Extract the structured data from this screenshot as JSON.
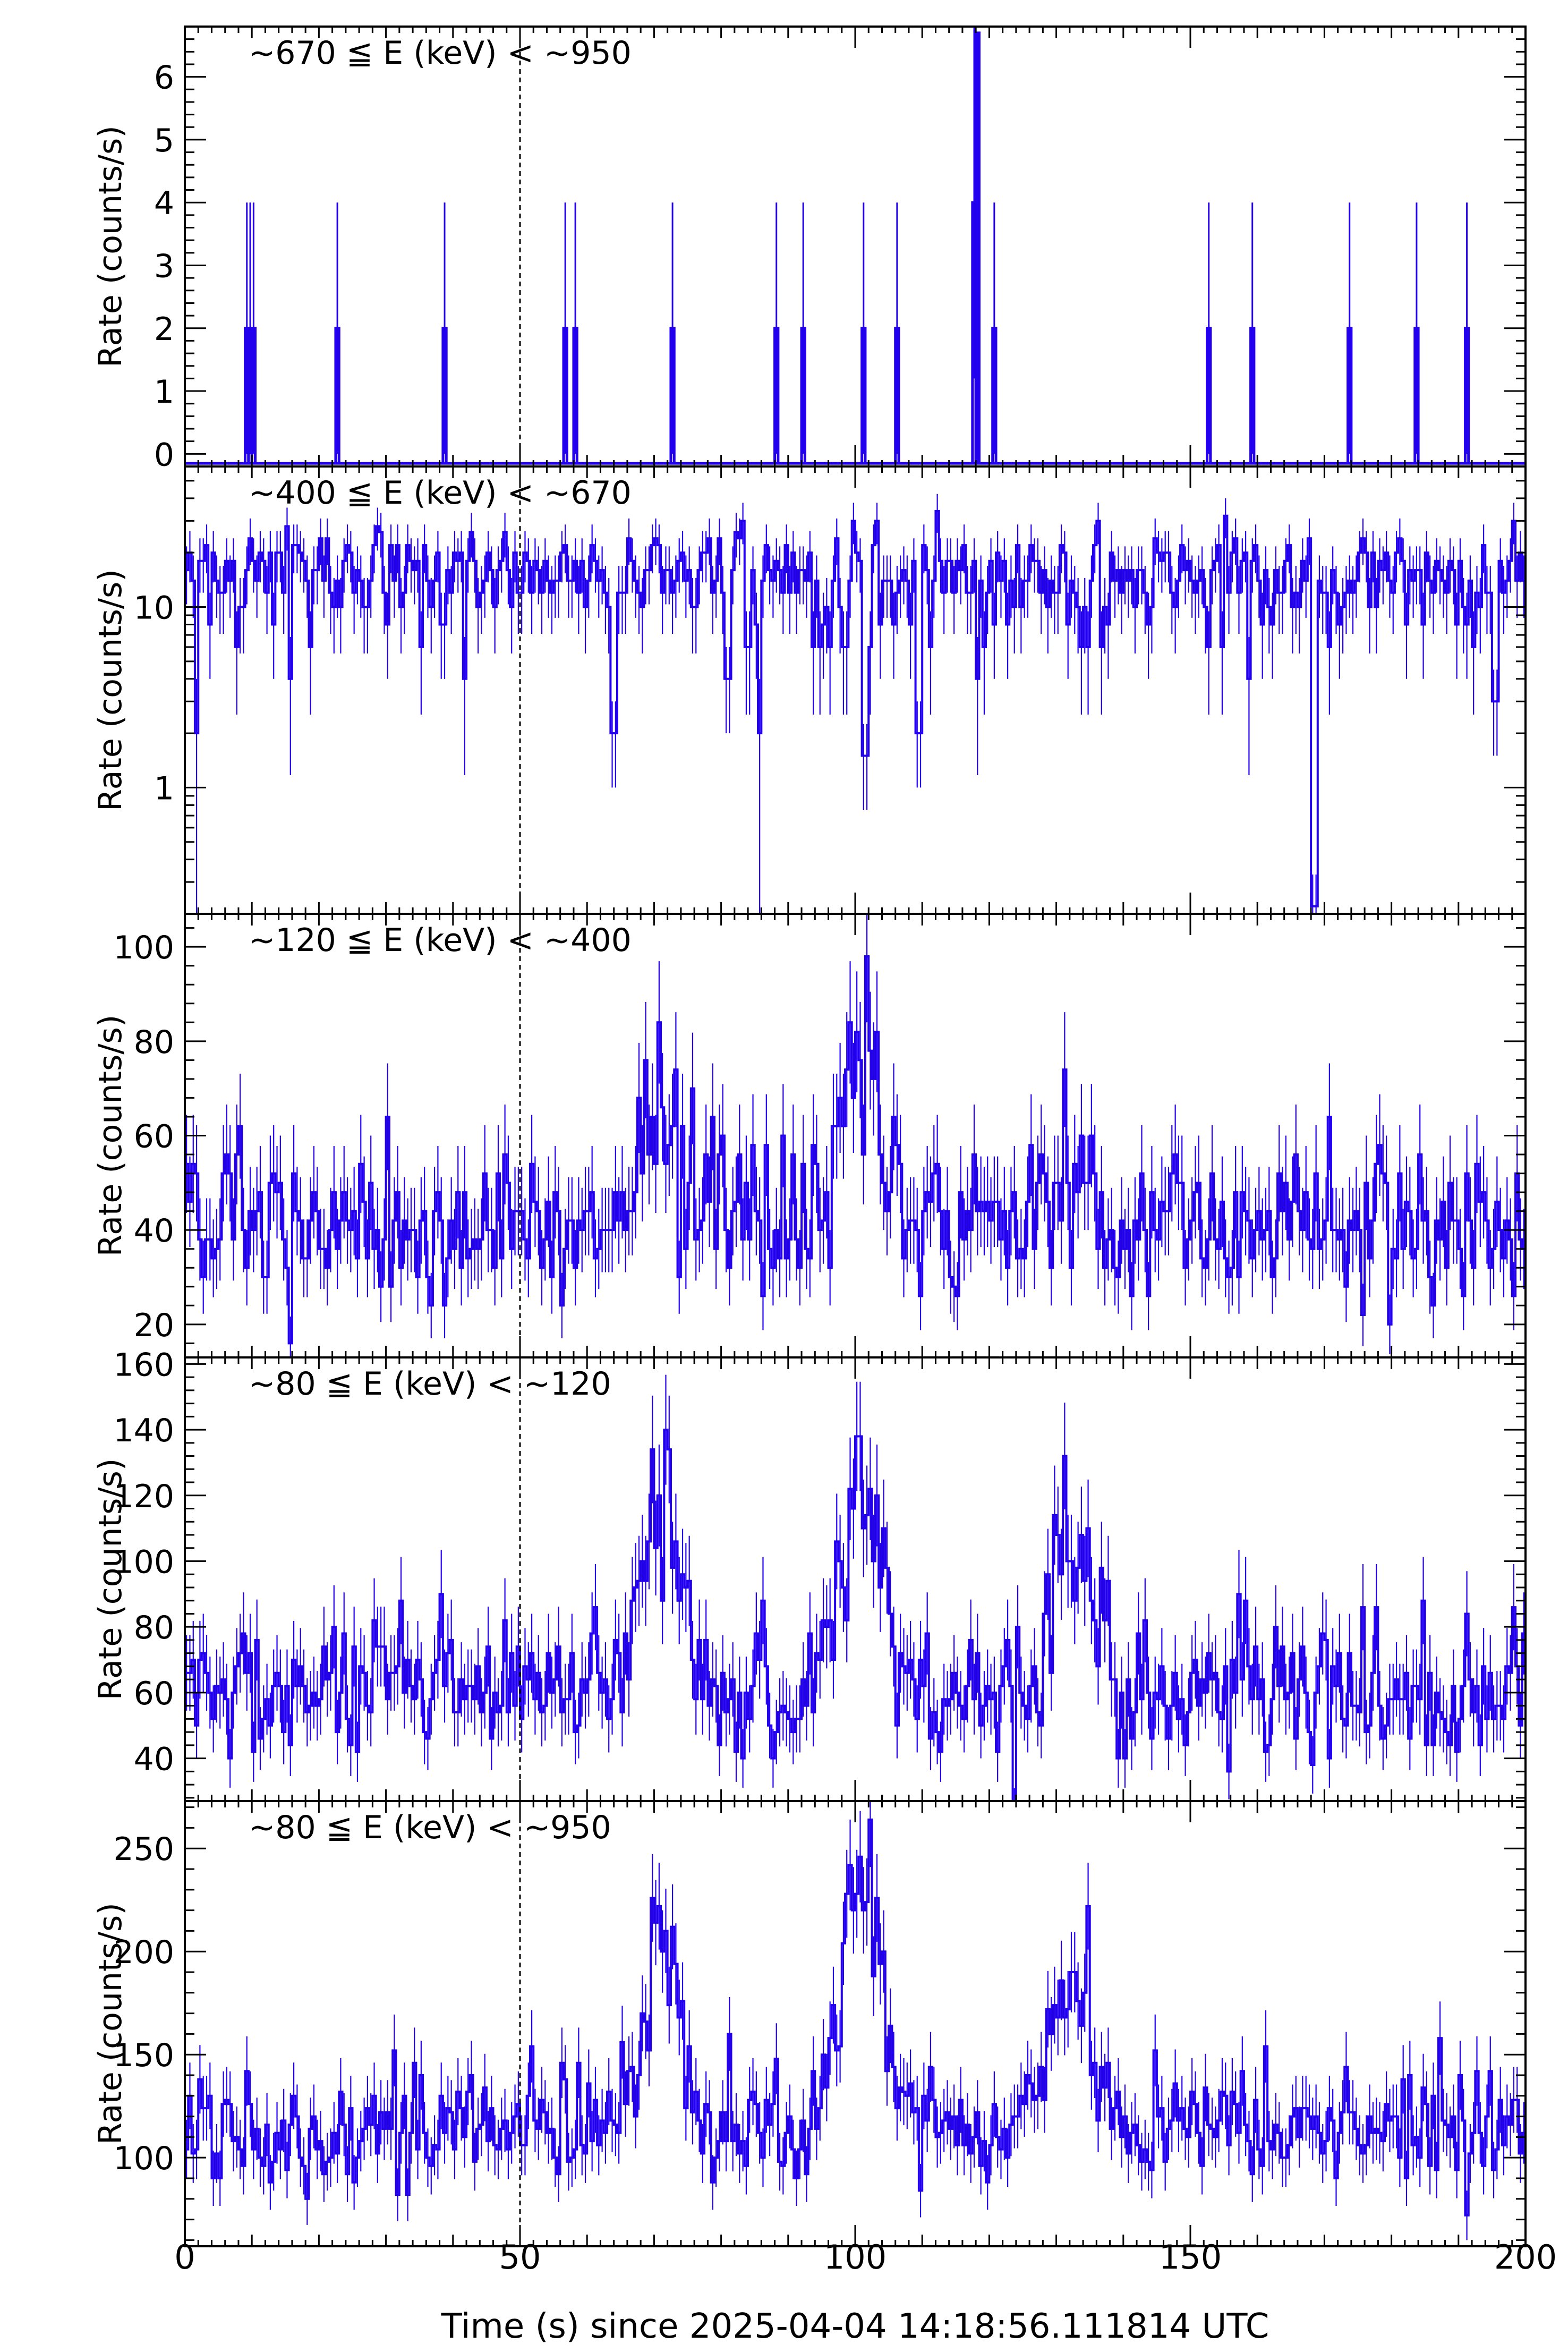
{
  "figure": {
    "xlabel": "Time (s) since 2025-04-04 14:18:56.111814 UTC",
    "x_ticks": [
      "0",
      "50",
      "100",
      "150",
      "200"
    ],
    "xlim": [
      0,
      200
    ],
    "trigger_line_x": 50,
    "colors": {
      "trace": "#2200ee",
      "axes": "#000000",
      "trigger": "#000000",
      "background": "#ffffff"
    }
  },
  "chart_data": [
    {
      "type": "line",
      "energy_label": "~670 ≦ E (keV) < ~950",
      "ylabel": "Rate (counts/s)",
      "yscale": "linear",
      "ylim": [
        -0.2,
        6.8
      ],
      "y_ticks": [
        "0",
        "1",
        "2",
        "3",
        "4",
        "5",
        "6"
      ],
      "y_tick_values": [
        0,
        1,
        2,
        3,
        4,
        5,
        6
      ],
      "bin_s": 0.5,
      "baseline": -0.15,
      "x": [
        9.0,
        9.5,
        10.0,
        22.5,
        38.5,
        56.5,
        58.0,
        72.5,
        88.0,
        92.0,
        101.0,
        106.0,
        117.5,
        118.0,
        120.5,
        152.5,
        159.0,
        173.5,
        183.5,
        191.0
      ],
      "y": [
        2,
        2,
        2,
        2,
        2,
        2,
        2,
        2,
        2,
        2,
        2,
        2,
        4,
        6.7,
        2,
        2,
        2,
        2,
        2,
        2
      ],
      "err": [
        2,
        2,
        2,
        2,
        2,
        2,
        2,
        2,
        2,
        2,
        2,
        2,
        2.8,
        0,
        2,
        2,
        2,
        2,
        2,
        2
      ]
    },
    {
      "type": "line",
      "energy_label": "~400 ≦ E (keV) < ~670",
      "ylabel": "Rate (counts/s)",
      "yscale": "log",
      "ylim": [
        0.2,
        60
      ],
      "y_ticks": [
        "1",
        "10"
      ],
      "y_tick_values": [
        1,
        10
      ],
      "bin_s": 0.5,
      "mean": 15,
      "dips": [
        [
          64.0,
          2
        ],
        [
          81.0,
          4
        ],
        [
          101.5,
          1.5
        ],
        [
          109.5,
          2
        ],
        [
          168.5,
          0.22
        ],
        [
          195.5,
          3
        ]
      ]
    },
    {
      "type": "line",
      "energy_label": "~120 ≦ E (keV) < ~400",
      "ylabel": "Rate (counts/s)",
      "yscale": "linear",
      "ylim": [
        13,
        107
      ],
      "y_ticks": [
        "20",
        "40",
        "60",
        "80",
        "100"
      ],
      "y_tick_values": [
        20,
        40,
        60,
        80,
        100
      ],
      "bin_s": 0.5,
      "baseline": 41,
      "peaks": [
        [
          71,
          25,
          3.0
        ],
        [
          101,
          35,
          3.0
        ],
        [
          131,
          10,
          3.0
        ]
      ]
    },
    {
      "type": "line",
      "energy_label": "~80 ≦ E (keV) < ~120",
      "ylabel": "Rate (counts/s)",
      "yscale": "linear",
      "ylim": [
        27,
        162
      ],
      "y_ticks": [
        "40",
        "60",
        "80",
        "100",
        "120",
        "140",
        "160"
      ],
      "y_tick_values": [
        40,
        60,
        80,
        100,
        120,
        140,
        160
      ],
      "bin_s": 0.5,
      "baseline": 60,
      "peaks": [
        [
          71.5,
          65,
          2.5
        ],
        [
          101,
          70,
          2.8
        ],
        [
          132,
          50,
          3.0
        ]
      ]
    },
    {
      "type": "line",
      "energy_label": "~80 ≦ E (keV) < ~950",
      "ylabel": "Rate (counts/s)",
      "yscale": "linear",
      "ylim": [
        57,
        273
      ],
      "y_ticks": [
        "100",
        "150",
        "200",
        "250"
      ],
      "y_tick_values": [
        100,
        150,
        200,
        250
      ],
      "bin_s": 0.5,
      "baseline": 115,
      "peaks": [
        [
          71.5,
          100,
          2.5
        ],
        [
          101,
          120,
          2.8
        ],
        [
          132,
          75,
          3.0
        ]
      ]
    }
  ]
}
